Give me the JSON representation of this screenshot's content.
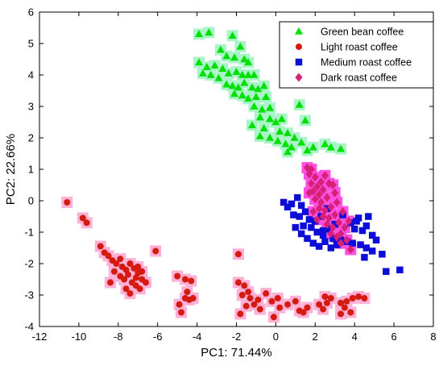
{
  "chart_data": {
    "type": "scatter",
    "title": "",
    "xlabel": "PC1: 71.44%",
    "ylabel": "PC2: 22.66%",
    "xlim": [
      -12,
      8
    ],
    "ylim": [
      -4,
      6
    ],
    "xticks": [
      -12,
      -10,
      -8,
      -6,
      -4,
      -2,
      0,
      2,
      4,
      6,
      8
    ],
    "yticks": [
      -4,
      -3,
      -2,
      -1,
      0,
      1,
      2,
      3,
      4,
      5,
      6
    ],
    "grid": false,
    "legend_position": "top-right",
    "series": [
      {
        "name": "Green bean coffee",
        "marker": "triangle",
        "color": "#00e000",
        "halo": "#aaf5c8",
        "points": [
          [
            -3.9,
            5.3
          ],
          [
            -3.4,
            5.35
          ],
          [
            -2.2,
            5.25
          ],
          [
            -1.8,
            4.9
          ],
          [
            -2.8,
            4.8
          ],
          [
            -2.5,
            4.6
          ],
          [
            -2.1,
            4.55
          ],
          [
            -1.6,
            4.5
          ],
          [
            -1.4,
            4.4
          ],
          [
            -3.9,
            4.4
          ],
          [
            -3.5,
            4.25
          ],
          [
            -3.1,
            4.3
          ],
          [
            -2.7,
            4.2
          ],
          [
            -2.4,
            4.05
          ],
          [
            -2.0,
            4.1
          ],
          [
            -1.7,
            4.0
          ],
          [
            -1.4,
            4.0
          ],
          [
            -1.1,
            4.0
          ],
          [
            -3.7,
            4.05
          ],
          [
            -3.3,
            4.0
          ],
          [
            -2.9,
            3.9
          ],
          [
            -2.5,
            3.7
          ],
          [
            -2.2,
            3.65
          ],
          [
            -1.9,
            3.6
          ],
          [
            -1.6,
            3.75
          ],
          [
            -1.2,
            3.6
          ],
          [
            -0.9,
            3.55
          ],
          [
            -0.6,
            3.65
          ],
          [
            -2.1,
            3.4
          ],
          [
            -1.7,
            3.35
          ],
          [
            -1.4,
            3.25
          ],
          [
            -1.0,
            3.3
          ],
          [
            -0.5,
            3.3
          ],
          [
            -1.1,
            3.0
          ],
          [
            -0.7,
            2.9
          ],
          [
            -0.3,
            2.95
          ],
          [
            -0.8,
            2.65
          ],
          [
            -0.3,
            2.6
          ],
          [
            -1.2,
            2.4
          ],
          [
            -0.6,
            2.3
          ],
          [
            0.0,
            2.5
          ],
          [
            0.3,
            2.6
          ],
          [
            0.2,
            2.2
          ],
          [
            -0.8,
            2.05
          ],
          [
            -0.3,
            2.0
          ],
          [
            0.1,
            1.9
          ],
          [
            0.5,
            1.8
          ],
          [
            0.8,
            1.7
          ],
          [
            1.3,
            1.85
          ],
          [
            1.6,
            1.6
          ],
          [
            1.9,
            1.7
          ],
          [
            0.6,
            1.55
          ],
          [
            2.5,
            1.8
          ],
          [
            2.8,
            1.7
          ],
          [
            3.3,
            1.65
          ],
          [
            1.2,
            3.05
          ],
          [
            1.5,
            2.55
          ],
          [
            0.95,
            2.0
          ],
          [
            0.6,
            2.15
          ]
        ]
      },
      {
        "name": "Light roast coffee",
        "marker": "circle",
        "color": "#d51a10",
        "halo": "#ffb0d6",
        "points": [
          [
            -10.6,
            -0.05
          ],
          [
            -9.8,
            -0.55
          ],
          [
            -9.6,
            -0.7
          ],
          [
            -8.9,
            -1.45
          ],
          [
            -8.7,
            -1.65
          ],
          [
            -8.5,
            -1.75
          ],
          [
            -8.3,
            -1.9
          ],
          [
            -8.1,
            -2.0
          ],
          [
            -7.9,
            -1.85
          ],
          [
            -7.8,
            -2.1
          ],
          [
            -7.6,
            -2.2
          ],
          [
            -7.4,
            -2.0
          ],
          [
            -7.2,
            -2.15
          ],
          [
            -7.0,
            -2.1
          ],
          [
            -6.8,
            -2.25
          ],
          [
            -7.9,
            -2.4
          ],
          [
            -7.7,
            -2.5
          ],
          [
            -7.5,
            -2.35
          ],
          [
            -7.3,
            -2.6
          ],
          [
            -7.1,
            -2.45
          ],
          [
            -6.8,
            -2.5
          ],
          [
            -7.6,
            -2.8
          ],
          [
            -7.4,
            -2.95
          ],
          [
            -7.1,
            -2.7
          ],
          [
            -6.9,
            -2.8
          ],
          [
            -8.4,
            -2.6
          ],
          [
            -8.2,
            -2.25
          ],
          [
            -7.0,
            -2.3
          ],
          [
            -6.6,
            -2.6
          ],
          [
            -6.1,
            -1.6
          ],
          [
            -5.0,
            -2.4
          ],
          [
            -4.6,
            -2.5
          ],
          [
            -4.3,
            -2.55
          ],
          [
            -4.5,
            -2.9
          ],
          [
            -4.2,
            -3.1
          ],
          [
            -4.6,
            -3.1
          ],
          [
            -4.9,
            -3.3
          ],
          [
            -4.8,
            -3.55
          ],
          [
            -4.4,
            -3.15
          ],
          [
            -1.9,
            -1.7
          ],
          [
            -1.9,
            -2.6
          ],
          [
            -1.6,
            -2.7
          ],
          [
            -1.4,
            -2.9
          ],
          [
            -1.7,
            -3.0
          ],
          [
            -1.3,
            -3.1
          ],
          [
            -0.9,
            -3.15
          ],
          [
            -0.5,
            -2.95
          ],
          [
            -0.2,
            -3.2
          ],
          [
            0.1,
            -3.1
          ],
          [
            -1.5,
            -3.35
          ],
          [
            -1.1,
            -3.3
          ],
          [
            -0.8,
            -3.45
          ],
          [
            -1.8,
            -3.6
          ],
          [
            0.2,
            -3.4
          ],
          [
            0.6,
            -3.3
          ],
          [
            1.0,
            -3.2
          ],
          [
            1.2,
            -3.5
          ],
          [
            1.4,
            -3.55
          ],
          [
            1.6,
            -3.4
          ],
          [
            2.5,
            -3.05
          ],
          [
            2.8,
            -3.1
          ],
          [
            2.2,
            -3.3
          ],
          [
            2.4,
            -3.45
          ],
          [
            3.3,
            -3.25
          ],
          [
            3.6,
            -3.2
          ],
          [
            3.9,
            -3.1
          ],
          [
            4.2,
            -3.05
          ],
          [
            4.5,
            -3.1
          ],
          [
            3.5,
            -3.4
          ],
          [
            3.3,
            -3.6
          ],
          [
            3.8,
            -3.55
          ],
          [
            -0.1,
            -3.7
          ],
          [
            2.6,
            -3.25
          ]
        ]
      },
      {
        "name": "Medium roast coffee",
        "marker": "square",
        "color": "#0d0dd8",
        "halo": "#ffffff",
        "points": [
          [
            0.4,
            -0.05
          ],
          [
            0.6,
            -0.2
          ],
          [
            0.8,
            -0.1
          ],
          [
            1.1,
            0.1
          ],
          [
            1.3,
            -0.15
          ],
          [
            0.9,
            -0.45
          ],
          [
            1.2,
            -0.5
          ],
          [
            1.5,
            -0.35
          ],
          [
            1.7,
            -0.6
          ],
          [
            1.4,
            -0.8
          ],
          [
            1.8,
            -0.85
          ],
          [
            2.0,
            -0.65
          ],
          [
            2.3,
            -0.5
          ],
          [
            2.1,
            -1.0
          ],
          [
            2.4,
            -1.1
          ],
          [
            2.7,
            -0.9
          ],
          [
            2.9,
            -1.2
          ],
          [
            1.6,
            -1.2
          ],
          [
            1.9,
            -1.35
          ],
          [
            2.2,
            -1.45
          ],
          [
            2.5,
            -1.3
          ],
          [
            2.8,
            -1.5
          ],
          [
            3.1,
            -1.4
          ],
          [
            3.3,
            -1.25
          ],
          [
            3.6,
            -1.3
          ],
          [
            3.8,
            -0.7
          ],
          [
            4.0,
            -0.9
          ],
          [
            4.2,
            -0.55
          ],
          [
            4.4,
            -0.95
          ],
          [
            4.6,
            -0.8
          ],
          [
            4.7,
            -0.5
          ],
          [
            4.9,
            -1.1
          ],
          [
            5.1,
            -1.25
          ],
          [
            3.9,
            -1.35
          ],
          [
            4.3,
            -1.4
          ],
          [
            4.6,
            -1.5
          ],
          [
            4.9,
            -1.6
          ],
          [
            5.4,
            -1.7
          ],
          [
            4.5,
            -1.8
          ],
          [
            5.6,
            -2.25
          ],
          [
            6.3,
            -2.2
          ],
          [
            1.3,
            -1.05
          ],
          [
            1.0,
            -0.85
          ],
          [
            2.6,
            -0.25
          ],
          [
            3.4,
            -0.45
          ],
          [
            4.1,
            -0.65
          ],
          [
            3.0,
            -0.75
          ],
          [
            2.4,
            -0.95
          ]
        ]
      },
      {
        "name": "Dark roast coffee",
        "marker": "diamond",
        "color": "#d6207a",
        "halo": "#ff50e0",
        "points": [
          [
            1.6,
            1.05
          ],
          [
            1.8,
            1.0
          ],
          [
            1.7,
            0.85
          ],
          [
            2.0,
            0.75
          ],
          [
            1.8,
            0.55
          ],
          [
            2.1,
            0.45
          ],
          [
            1.9,
            0.3
          ],
          [
            2.2,
            0.2
          ],
          [
            2.4,
            0.35
          ],
          [
            2.0,
            0.05
          ],
          [
            2.3,
            -0.05
          ],
          [
            2.6,
            0.1
          ],
          [
            2.2,
            -0.25
          ],
          [
            2.5,
            -0.3
          ],
          [
            2.8,
            -0.2
          ],
          [
            2.4,
            -0.5
          ],
          [
            2.7,
            -0.55
          ],
          [
            3.0,
            -0.45
          ],
          [
            2.6,
            -0.75
          ],
          [
            2.9,
            -0.85
          ],
          [
            3.2,
            -0.7
          ],
          [
            2.8,
            -1.05
          ],
          [
            3.1,
            -1.15
          ],
          [
            3.3,
            -1.35
          ],
          [
            3.6,
            -1.25
          ],
          [
            3.8,
            -1.55
          ],
          [
            2.3,
            0.6
          ],
          [
            2.5,
            0.8
          ],
          [
            2.7,
            0.55
          ],
          [
            3.0,
            0.25
          ],
          [
            3.1,
            -0.05
          ],
          [
            3.4,
            -0.35
          ],
          [
            1.9,
            -0.35
          ],
          [
            2.1,
            -0.6
          ],
          [
            3.5,
            -0.85
          ],
          [
            3.7,
            -0.65
          ],
          [
            1.7,
            0.25
          ],
          [
            2.9,
            0.5
          ],
          [
            3.3,
            -1.05
          ]
        ]
      }
    ],
    "annotations": []
  }
}
